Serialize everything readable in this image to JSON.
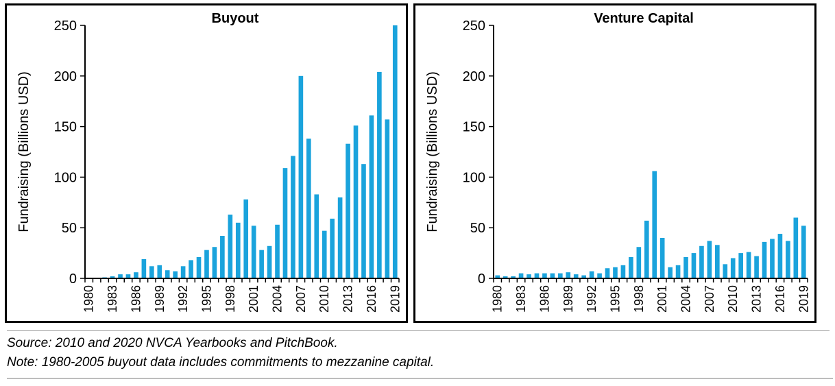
{
  "colors": {
    "bar": "#1aa3dc",
    "axis": "#000000"
  },
  "chart_data": [
    {
      "type": "bar",
      "title": "Buyout",
      "ylabel": "Fundraising (Billions USD)",
      "xlabel": "",
      "ylim": [
        0,
        250
      ],
      "yticks": [
        0,
        50,
        100,
        150,
        200,
        250
      ],
      "xtick_labels": [
        "1980",
        "1983",
        "1986",
        "1989",
        "1992",
        "1995",
        "1998",
        "2001",
        "2004",
        "2007",
        "2010",
        "2013",
        "2016",
        "2019"
      ],
      "categories": [
        "1980",
        "1981",
        "1982",
        "1983",
        "1984",
        "1985",
        "1986",
        "1987",
        "1988",
        "1989",
        "1990",
        "1991",
        "1992",
        "1993",
        "1994",
        "1995",
        "1996",
        "1997",
        "1998",
        "1999",
        "2000",
        "2001",
        "2002",
        "2003",
        "2004",
        "2005",
        "2006",
        "2007",
        "2008",
        "2009",
        "2010",
        "2011",
        "2012",
        "2013",
        "2014",
        "2015",
        "2016",
        "2017",
        "2018",
        "2019"
      ],
      "values": [
        0.3,
        0.3,
        1,
        2,
        4,
        4,
        6,
        19,
        12,
        13,
        8,
        7,
        12,
        18,
        21,
        28,
        31,
        42,
        63,
        55,
        78,
        52,
        28,
        32,
        53,
        109,
        121,
        200,
        138,
        83,
        47,
        59,
        80,
        133,
        151,
        113,
        161,
        204,
        157,
        250
      ]
    },
    {
      "type": "bar",
      "title": "Venture Capital",
      "ylabel": "Fundraising (Billions USD)",
      "xlabel": "",
      "ylim": [
        0,
        250
      ],
      "yticks": [
        0,
        50,
        100,
        150,
        200,
        250
      ],
      "xtick_labels": [
        "1980",
        "1983",
        "1986",
        "1989",
        "1992",
        "1995",
        "1998",
        "2001",
        "2004",
        "2007",
        "2010",
        "2013",
        "2016",
        "2019"
      ],
      "categories": [
        "1980",
        "1981",
        "1982",
        "1983",
        "1984",
        "1985",
        "1986",
        "1987",
        "1988",
        "1989",
        "1990",
        "1991",
        "1992",
        "1993",
        "1994",
        "1995",
        "1996",
        "1997",
        "1998",
        "1999",
        "2000",
        "2001",
        "2002",
        "2003",
        "2004",
        "2005",
        "2006",
        "2007",
        "2008",
        "2009",
        "2010",
        "2011",
        "2012",
        "2013",
        "2014",
        "2015",
        "2016",
        "2017",
        "2018",
        "2019"
      ],
      "values": [
        3,
        2,
        2,
        5,
        4,
        5,
        5,
        5,
        5,
        6,
        4,
        3,
        7,
        5,
        10,
        11,
        13,
        21,
        31,
        57,
        106,
        40,
        11,
        13,
        21,
        25,
        32,
        37,
        33,
        14,
        20,
        25,
        26,
        22,
        36,
        39,
        44,
        37,
        60,
        52
      ]
    }
  ],
  "footnotes": {
    "source": "Source: 2010 and 2020 NVCA Yearbooks and PitchBook.",
    "note": "Note: 1980-2005 buyout data includes commitments to mezzanine capital."
  }
}
